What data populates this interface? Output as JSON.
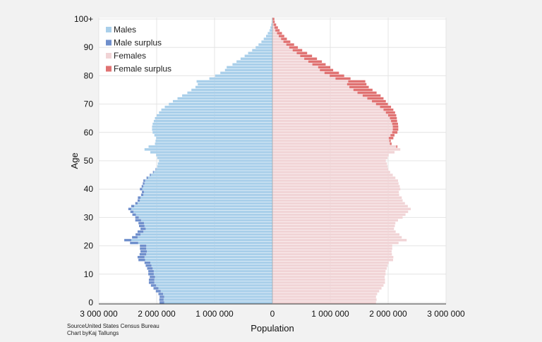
{
  "chart_data": {
    "type": "bar",
    "orientation": "horizontal-pyramid",
    "xlabel": "Population",
    "ylabel": "Age",
    "xlim": [
      -3000000,
      3000000
    ],
    "ylim": [
      0,
      100
    ],
    "x_ticks": [
      {
        "value": -3000000,
        "label": "3 000 000"
      },
      {
        "value": -2000000,
        "label": "2 000 000"
      },
      {
        "value": -1000000,
        "label": "1 000 000"
      },
      {
        "value": 0,
        "label": "0"
      },
      {
        "value": 1000000,
        "label": "1 000 000"
      },
      {
        "value": 2000000,
        "label": "2 000 000"
      },
      {
        "value": 3000000,
        "label": "3 000 000"
      }
    ],
    "y_ticks": [
      {
        "value": 0,
        "label": "0"
      },
      {
        "value": 10,
        "label": "10"
      },
      {
        "value": 20,
        "label": "20"
      },
      {
        "value": 30,
        "label": "30"
      },
      {
        "value": 40,
        "label": "40"
      },
      {
        "value": 50,
        "label": "50"
      },
      {
        "value": 60,
        "label": "60"
      },
      {
        "value": 70,
        "label": "70"
      },
      {
        "value": 80,
        "label": "80"
      },
      {
        "value": 90,
        "label": "90"
      },
      {
        "value": 100,
        "label": "100+"
      }
    ],
    "grid": true,
    "legend_position": "top-left",
    "legend": [
      {
        "name": "Males",
        "color": "#a9cfea"
      },
      {
        "name": "Male surplus",
        "color": "#6f8fcc"
      },
      {
        "name": "Females",
        "color": "#f1d4d6"
      },
      {
        "name": "Female surplus",
        "color": "#e07272"
      }
    ],
    "ages": [
      0,
      1,
      2,
      3,
      4,
      5,
      6,
      7,
      8,
      9,
      10,
      11,
      12,
      13,
      14,
      15,
      16,
      17,
      18,
      19,
      20,
      21,
      22,
      23,
      24,
      25,
      26,
      27,
      28,
      29,
      30,
      31,
      32,
      33,
      34,
      35,
      36,
      37,
      38,
      39,
      40,
      41,
      42,
      43,
      44,
      45,
      46,
      47,
      48,
      49,
      50,
      51,
      52,
      53,
      54,
      55,
      56,
      57,
      58,
      59,
      60,
      61,
      62,
      63,
      64,
      65,
      66,
      67,
      68,
      69,
      70,
      71,
      72,
      73,
      74,
      75,
      76,
      77,
      78,
      79,
      80,
      81,
      82,
      83,
      84,
      85,
      86,
      87,
      88,
      89,
      90,
      91,
      92,
      93,
      94,
      95,
      96,
      97,
      98,
      99,
      100
    ],
    "series": [
      {
        "name": "Males",
        "values": [
          1870000,
          1880000,
          1870000,
          1890000,
          1930000,
          1970000,
          2010000,
          2040000,
          2040000,
          2030000,
          2050000,
          2050000,
          2070000,
          2090000,
          2110000,
          2200000,
          2210000,
          2180000,
          2170000,
          2180000,
          2180000,
          2320000,
          2440000,
          2330000,
          2280000,
          2230000,
          2190000,
          2210000,
          2220000,
          2270000,
          2310000,
          2360000,
          2400000,
          2440000,
          2390000,
          2330000,
          2290000,
          2280000,
          2230000,
          2220000,
          2250000,
          2230000,
          2210000,
          2200000,
          2150000,
          2100000,
          2050000,
          2010000,
          1990000,
          1980000,
          1960000,
          1990000,
          2010000,
          2110000,
          2210000,
          2140000,
          2030000,
          2020000,
          2010000,
          2040000,
          2070000,
          2080000,
          2080000,
          2070000,
          2050000,
          2030000,
          2000000,
          1960000,
          1920000,
          1860000,
          1790000,
          1720000,
          1640000,
          1560000,
          1470000,
          1400000,
          1330000,
          1290000,
          1310000,
          1090000,
          990000,
          900000,
          820000,
          790000,
          690000,
          620000,
          550000,
          480000,
          420000,
          350000,
          290000,
          240000,
          190000,
          150000,
          110000,
          80000,
          50000,
          35000,
          20000,
          10000,
          4000
        ]
      },
      {
        "name": "Male surplus",
        "values": [
          80000,
          75000,
          80000,
          80000,
          85000,
          85000,
          90000,
          95000,
          95000,
          90000,
          95000,
          95000,
          95000,
          100000,
          100000,
          115000,
          120000,
          115000,
          110000,
          110000,
          110000,
          140000,
          120000,
          95000,
          85000,
          100000,
          90000,
          95000,
          95000,
          100000,
          60000,
          60000,
          55000,
          50000,
          50000,
          40000,
          40000,
          45000,
          40000,
          35000,
          40000,
          30000,
          30000,
          30000,
          25000,
          20000,
          15000,
          10000,
          0,
          0,
          0,
          0,
          0,
          0,
          0,
          0,
          0,
          0,
          0,
          0,
          0,
          0,
          0,
          0,
          0,
          0,
          0,
          0,
          0,
          0,
          0,
          0,
          0,
          0,
          0,
          0,
          0,
          0,
          0,
          0,
          0,
          0,
          0,
          0,
          0,
          0,
          0,
          0,
          0,
          0,
          0,
          0,
          0,
          0,
          0,
          0,
          0,
          0,
          0,
          0,
          0
        ]
      },
      {
        "name": "Females",
        "values": [
          1790000,
          1800000,
          1790000,
          1810000,
          1845000,
          1885000,
          1920000,
          1945000,
          1945000,
          1940000,
          1955000,
          1955000,
          1975000,
          1990000,
          2010000,
          2085000,
          2090000,
          2065000,
          2060000,
          2070000,
          2070000,
          2180000,
          2320000,
          2235000,
          2195000,
          2130000,
          2100000,
          2115000,
          2125000,
          2170000,
          2250000,
          2300000,
          2345000,
          2390000,
          2340000,
          2290000,
          2250000,
          2235000,
          2190000,
          2185000,
          2210000,
          2200000,
          2180000,
          2170000,
          2125000,
          2080000,
          2035000,
          2000000,
          1990000,
          1980000,
          1960000,
          1990000,
          2010000,
          2110000,
          2210000,
          2140000,
          2030000,
          2020000,
          2010000,
          2040000,
          2070000,
          2080000,
          2080000,
          2070000,
          2050000,
          2030000,
          2000000,
          1960000,
          1920000,
          1860000,
          1790000,
          1720000,
          1640000,
          1560000,
          1470000,
          1400000,
          1330000,
          1290000,
          1310000,
          1090000,
          990000,
          900000,
          820000,
          790000,
          690000,
          620000,
          550000,
          480000,
          420000,
          350000,
          290000,
          240000,
          190000,
          150000,
          110000,
          80000,
          50000,
          35000,
          20000,
          10000,
          4000
        ]
      },
      {
        "name": "Female surplus",
        "values": [
          0,
          0,
          0,
          0,
          0,
          0,
          0,
          0,
          0,
          0,
          0,
          0,
          0,
          0,
          0,
          0,
          0,
          0,
          0,
          0,
          0,
          0,
          0,
          0,
          0,
          0,
          0,
          0,
          0,
          0,
          0,
          0,
          0,
          0,
          0,
          0,
          0,
          0,
          0,
          0,
          0,
          0,
          0,
          0,
          0,
          0,
          0,
          0,
          0,
          0,
          0,
          0,
          0,
          0,
          0,
          20000,
          30000,
          25000,
          80000,
          70000,
          90000,
          95000,
          95000,
          100000,
          105000,
          120000,
          140000,
          160000,
          170000,
          190000,
          205000,
          240000,
          280000,
          310000,
          330000,
          330000,
          335000,
          335000,
          295000,
          260000,
          250000,
          250000,
          230000,
          210000,
          230000,
          235000,
          220000,
          205000,
          180000,
          165000,
          150000,
          135000,
          120000,
          100000,
          95000,
          85000,
          75000,
          60000,
          45000,
          30000,
          30000
        ]
      }
    ],
    "source": "SourceUnited States Census Bureau",
    "credit": "Chart byKaj Tallungs"
  }
}
